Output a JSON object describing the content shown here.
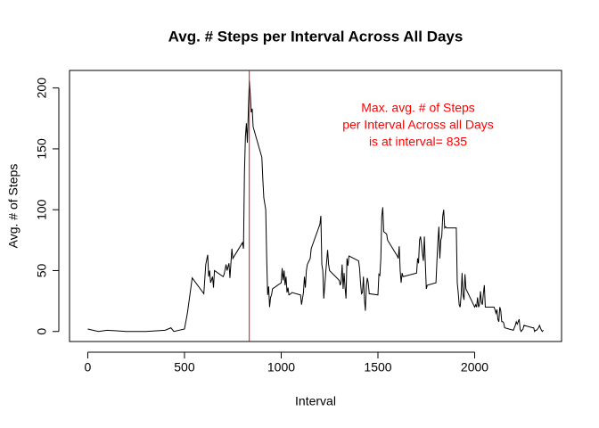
{
  "chart_data": {
    "type": "line",
    "title": "Avg. # Steps per Interval Across All Days",
    "xlabel": "Interval",
    "ylabel": "Avg. # of Steps",
    "annotation": [
      "Max. avg. # of Steps",
      "per Interval Across all Days",
      "is at interval=  835"
    ],
    "vline": 835,
    "vline_color": "#ff0000",
    "color": "#000000",
    "x": [
      0,
      55,
      100,
      200,
      300,
      400,
      430,
      445,
      500,
      515,
      540,
      600,
      610,
      620,
      625,
      630,
      635,
      645,
      650,
      655,
      700,
      705,
      715,
      720,
      730,
      735,
      745,
      750,
      800,
      805,
      810,
      815,
      820,
      825,
      830,
      835,
      840,
      845,
      850,
      855,
      900,
      905,
      910,
      920,
      925,
      930,
      935,
      940,
      945,
      950,
      955,
      1000,
      1005,
      1010,
      1015,
      1020,
      1025,
      1030,
      1035,
      1040,
      1050,
      1055,
      1100,
      1105,
      1115,
      1120,
      1125,
      1130,
      1135,
      1150,
      1155,
      1200,
      1205,
      1210,
      1215,
      1220,
      1230,
      1240,
      1245,
      1250,
      1300,
      1305,
      1310,
      1315,
      1320,
      1325,
      1330,
      1335,
      1340,
      1345,
      1350,
      1400,
      1405,
      1410,
      1415,
      1420,
      1425,
      1430,
      1435,
      1440,
      1445,
      1450,
      1455,
      1500,
      1505,
      1510,
      1515,
      1520,
      1525,
      1530,
      1545,
      1550,
      1600,
      1605,
      1610,
      1615,
      1620,
      1625,
      1630,
      1700,
      1705,
      1710,
      1715,
      1720,
      1725,
      1730,
      1735,
      1740,
      1745,
      1750,
      1755,
      1800,
      1805,
      1810,
      1815,
      1820,
      1825,
      1830,
      1835,
      1840,
      1845,
      1850,
      1855,
      1900,
      1905,
      1910,
      1915,
      1920,
      1925,
      1930,
      1935,
      1940,
      1945,
      1950,
      1955,
      2000,
      2005,
      2010,
      2015,
      2020,
      2025,
      2030,
      2035,
      2040,
      2045,
      2050,
      2055,
      2100,
      2105,
      2110,
      2115,
      2120,
      2125,
      2130,
      2135,
      2140,
      2145,
      2150,
      2155,
      2200,
      2205,
      2210,
      2215,
      2220,
      2225,
      2230,
      2235,
      2240,
      2245,
      2250,
      2255,
      2300,
      2305,
      2310,
      2315,
      2320,
      2325,
      2330,
      2335,
      2340,
      2345,
      2350,
      2355
    ],
    "values": [
      2,
      0,
      1,
      0,
      0,
      1,
      3,
      0,
      2,
      15,
      44,
      31,
      55,
      63,
      45,
      50,
      40,
      45,
      36,
      50,
      45,
      47,
      55,
      50,
      56,
      44,
      68,
      60,
      73,
      68,
      130,
      160,
      171,
      155,
      180,
      206,
      195,
      180,
      183,
      168,
      143,
      125,
      110,
      100,
      60,
      30,
      37,
      20,
      28,
      30,
      35,
      40,
      52,
      42,
      50,
      38,
      45,
      32,
      36,
      30,
      31,
      32,
      30,
      22,
      32,
      45,
      36,
      50,
      55,
      60,
      68,
      88,
      95,
      55,
      50,
      27,
      48,
      67,
      55,
      50,
      42,
      38,
      41,
      55,
      35,
      48,
      36,
      27,
      60,
      54,
      62,
      58,
      52,
      40,
      31,
      32,
      45,
      27,
      17,
      37,
      44,
      40,
      31,
      30,
      47,
      46,
      60,
      95,
      102,
      82,
      80,
      75,
      62,
      60,
      70,
      50,
      40,
      48,
      45,
      48,
      60,
      56,
      75,
      78,
      72,
      64,
      58,
      78,
      56,
      35,
      38,
      40,
      58,
      74,
      86,
      60,
      75,
      78,
      95,
      100,
      85,
      86,
      85,
      85,
      85,
      40,
      32,
      22,
      20,
      30,
      48,
      30,
      26,
      47,
      35,
      20,
      22,
      20,
      28,
      20,
      22,
      33,
      24,
      22,
      31,
      38,
      20,
      20,
      18,
      15,
      18,
      10,
      8,
      20,
      17,
      8,
      8,
      7,
      3,
      1,
      3,
      5,
      8,
      6,
      8,
      10,
      2,
      0,
      1,
      2,
      5,
      3,
      3,
      0,
      1,
      1,
      2,
      3,
      5,
      3,
      1,
      0,
      1
    ],
    "xlim": [
      -94.2,
      2449.2
    ],
    "ylim": [
      -8.25,
      214.4
    ],
    "xticks": [
      0,
      500,
      1000,
      1500,
      2000
    ],
    "yticks": [
      0,
      50,
      100,
      150,
      200
    ]
  }
}
